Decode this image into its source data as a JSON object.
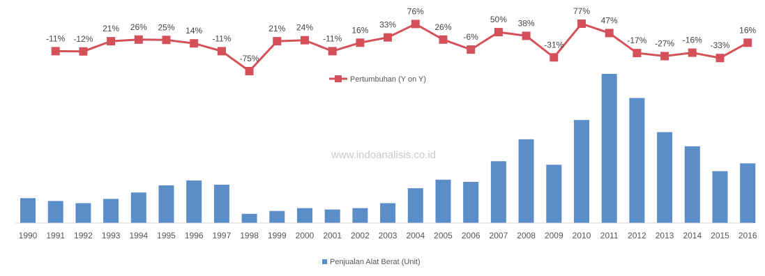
{
  "chart_data": {
    "type": "bar+line",
    "categories": [
      "1990",
      "1991",
      "1992",
      "1993",
      "1994",
      "1995",
      "1996",
      "1997",
      "1998",
      "1999",
      "2000",
      "2001",
      "2002",
      "2003",
      "2004",
      "2005",
      "2006",
      "2007",
      "2008",
      "2009",
      "2010",
      "2011",
      "2012",
      "2013",
      "2014",
      "2015",
      "2016"
    ],
    "bar_series": {
      "name": "Penjualan Alat Berat (Unit)",
      "color": "#5b8dc8",
      "values": [
        3500,
        3100,
        2800,
        3400,
        4300,
        5300,
        6000,
        5400,
        1300,
        1700,
        2100,
        1900,
        2100,
        2800,
        4900,
        6100,
        5800,
        8700,
        11800,
        8200,
        14500,
        21000,
        17600,
        12800,
        10800,
        7300,
        8400
      ]
    },
    "line_series": {
      "name": "Pertumbuhan (Y on Y)",
      "color": "#d4515a",
      "values": [
        null,
        -11,
        -12,
        21,
        26,
        25,
        14,
        -11,
        -75,
        21,
        24,
        -11,
        16,
        33,
        76,
        26,
        -6,
        50,
        38,
        -31,
        77,
        47,
        -17,
        -27,
        -16,
        -33,
        16
      ],
      "labels": [
        null,
        "-11%",
        "-12%",
        "21%",
        "26%",
        "25%",
        "14%",
        "-11%",
        "-75%",
        "21%",
        "24%",
        "-11%",
        "16%",
        "33%",
        "76%",
        "26%",
        "-6%",
        "50%",
        "38%",
        "-31%",
        "77%",
        "47%",
        "-17%",
        "-27%",
        "-16%",
        "-33%",
        "16%"
      ]
    },
    "grid": false,
    "legend_line": "middle-center",
    "legend_bar": "bottom-center"
  },
  "watermark": "www.indoanalisis.co.id",
  "legend": {
    "line_label": "Pertumbuhan (Y on Y)",
    "bar_label": "Penjualan Alat Berat (Unit)"
  }
}
